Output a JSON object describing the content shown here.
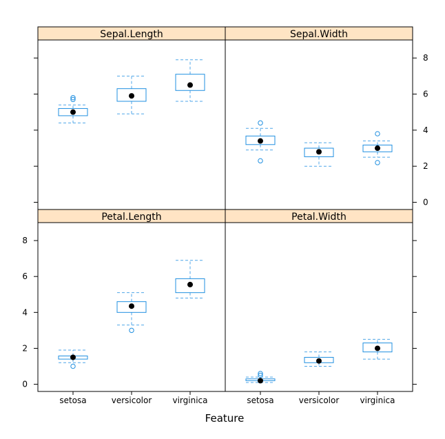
{
  "chart_data": {
    "type": "boxplot",
    "xlabel": "Feature",
    "categories": [
      "setosa",
      "versicolor",
      "virginica"
    ],
    "ylim": [
      -0.4,
      9.0
    ],
    "yticks": [
      0,
      2,
      4,
      6,
      8
    ],
    "layout": {
      "columns": 2,
      "rows": 2
    },
    "colors": {
      "box": "#1f8fe0",
      "whisker": "#4fa6e8",
      "median_dot": "#000000",
      "strip": "#ffe4c4",
      "frame": "#000000"
    },
    "panels": [
      {
        "title": "Petal.Length",
        "boxes": [
          {
            "category": "setosa",
            "min": 1.2,
            "q1": 1.4,
            "median": 1.5,
            "q3": 1.575,
            "max": 1.9,
            "outliers": [
              1.0
            ]
          },
          {
            "category": "versicolor",
            "min": 3.3,
            "q1": 4.0,
            "median": 4.35,
            "q3": 4.6,
            "max": 5.1,
            "outliers": [
              3.0
            ]
          },
          {
            "category": "virginica",
            "min": 4.8,
            "q1": 5.1,
            "median": 5.55,
            "q3": 5.875,
            "max": 6.9,
            "outliers": []
          }
        ]
      },
      {
        "title": "Petal.Width",
        "boxes": [
          {
            "category": "setosa",
            "min": 0.1,
            "q1": 0.2,
            "median": 0.2,
            "q3": 0.3,
            "max": 0.4,
            "outliers": [
              0.5,
              0.6
            ]
          },
          {
            "category": "versicolor",
            "min": 1.0,
            "q1": 1.2,
            "median": 1.3,
            "q3": 1.5,
            "max": 1.8,
            "outliers": []
          },
          {
            "category": "virginica",
            "min": 1.4,
            "q1": 1.8,
            "median": 2.0,
            "q3": 2.3,
            "max": 2.5,
            "outliers": []
          }
        ]
      },
      {
        "title": "Sepal.Length",
        "boxes": [
          {
            "category": "setosa",
            "min": 4.4,
            "q1": 4.8,
            "median": 5.0,
            "q3": 5.2,
            "max": 5.4,
            "outliers": [
              5.7,
              5.8
            ]
          },
          {
            "category": "versicolor",
            "min": 4.9,
            "q1": 5.6,
            "median": 5.9,
            "q3": 6.3,
            "max": 7.0,
            "outliers": []
          },
          {
            "category": "virginica",
            "min": 5.6,
            "q1": 6.2,
            "median": 6.5,
            "q3": 7.1,
            "max": 7.9,
            "outliers": []
          }
        ]
      },
      {
        "title": "Sepal.Width",
        "boxes": [
          {
            "category": "setosa",
            "min": 2.9,
            "q1": 3.2,
            "median": 3.4,
            "q3": 3.675,
            "max": 4.1,
            "outliers": [
              2.3,
              4.4
            ]
          },
          {
            "category": "versicolor",
            "min": 2.0,
            "q1": 2.525,
            "median": 2.8,
            "q3": 3.0,
            "max": 3.3,
            "outliers": []
          },
          {
            "category": "virginica",
            "min": 2.5,
            "q1": 2.8,
            "median": 3.0,
            "q3": 3.175,
            "max": 3.4,
            "outliers": [
              2.2,
              3.8
            ]
          }
        ]
      }
    ]
  }
}
